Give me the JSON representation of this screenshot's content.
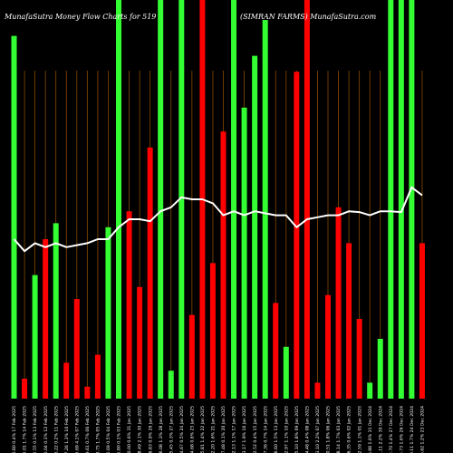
{
  "chart_data": {
    "type": "bar",
    "title_left": "MunafaSutra  Money Flow  Charts for 519",
    "title_right": "(SIMRAN   FARMS) MunafaSutra.com",
    "ylim": [
      0,
      100
    ],
    "grid": false,
    "colors": {
      "up": "#33ff33",
      "down": "#ff0000",
      "line": "#ffffff",
      "grid": "#8a4a00"
    },
    "x": [
      "6.80 0.4% 17 Feb 2025",
      "5.01 1.7% 14 Feb 2025",
      "5.55 0.1% 13 Feb 2025",
      "6.04 0.3% 12 Feb 2025",
      "6.22 0.2% 11 Feb 2025",
      "7.26 1.3% 10 Feb 2025",
      "5.69 4.1% 07 Feb 2025",
      "9.61 0.7% 06 Feb 2025",
      "8.75 1.7% 05 Feb 2025",
      "5.69 0.5% 04 Feb 2025",
      "1.80 0.1% 03 Feb 2025",
      "0.00 0.6% 31 Jan 2025",
      "8.49 2.1% 30 Jan 2025",
      "6.83 0.9% 29 Jan 2025",
      "6.08 1.3% 28 Jan 2025",
      "5.45 0.3% 27 Jan 2025",
      "4.67 0.5% 24 Jan 2025",
      "4.68 0.6% 23 Jan 2025",
      "5.81 1.4% 22 Jan 2025",
      "2.20 1.6% 21 Jan 2025",
      "7.48 0.1% 20 Jan 2025",
      "2.13 1.1% 17 Jan 2025",
      "3.17 1.9% 16 Jan 2025",
      "2.52 0.4% 15 Jan 2025",
      "7.36 0.7% 14 Jan 2025",
      "6.60 1.5% 13 Jan 2025",
      "2.97 1.1% 10 Jan 2025",
      "5.10 1.8% 09 Jan 2025",
      "4.48 0.4% 08 Jan 2025",
      "3.10 2.2% 07 Jan 2025",
      "0.51 1.8% 06 Jan 2025",
      "8.14 1.7% 03 Jan 2025",
      "6.35 0.6% 02 Jan 2025",
      "2.59 1.1% 01 Jan 2025",
      "6.88 1.6% 31 Dec 2024",
      "1.11 2.2% 30 Dec 2024",
      "2.70 1.4% 27 Dec 2024",
      "5.73 1.6% 26 Dec 2024",
      "0.11 1.7% 24 Dec 2024",
      "6.62 1.2% 23 Dec 2024"
    ],
    "series": [
      {
        "type": "bar",
        "values": [
          91,
          5,
          31,
          40,
          44,
          9,
          25,
          3,
          11,
          43,
          100,
          47,
          28,
          63,
          100,
          7,
          100,
          21,
          100,
          34,
          67,
          100,
          73,
          86,
          95,
          24,
          13,
          82,
          100,
          4,
          26,
          48,
          39,
          20,
          4,
          15,
          100,
          100,
          100,
          39
        ],
        "direction": [
          "up",
          "down",
          "up",
          "down",
          "up",
          "down",
          "down",
          "down",
          "down",
          "up",
          "up",
          "down",
          "down",
          "down",
          "up",
          "up",
          "up",
          "down",
          "down",
          "down",
          "down",
          "up",
          "up",
          "up",
          "up",
          "down",
          "up",
          "down",
          "down",
          "down",
          "down",
          "down",
          "down",
          "down",
          "up",
          "up",
          "up",
          "up",
          "up",
          "down"
        ]
      },
      {
        "type": "line",
        "values": [
          40,
          37,
          39,
          38,
          39,
          38,
          38.5,
          39,
          40,
          40,
          43,
          45,
          45,
          44.5,
          47,
          48,
          50.5,
          50,
          50,
          49,
          46,
          47,
          46,
          47,
          46.5,
          46,
          46,
          43,
          45,
          45.5,
          46,
          46,
          47,
          46.8,
          46,
          47,
          47,
          46.8,
          53,
          51
        ]
      }
    ]
  }
}
